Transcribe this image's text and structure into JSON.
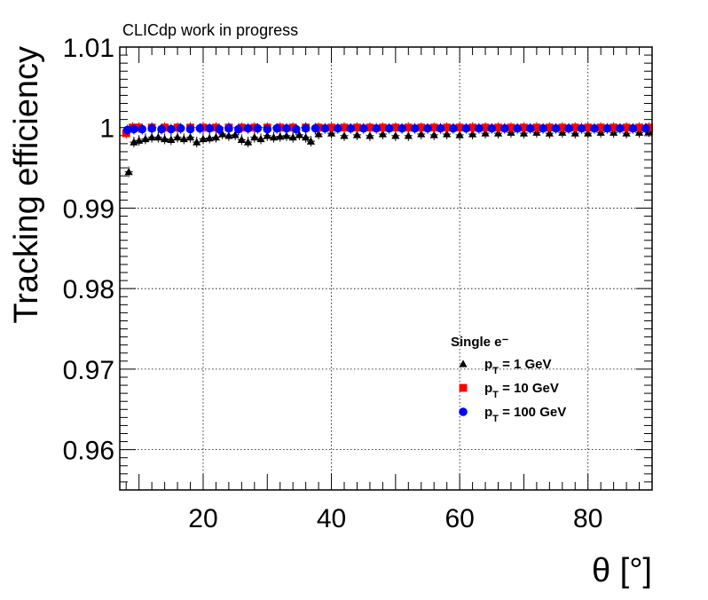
{
  "chart_data": {
    "type": "scatter",
    "annotation": "CLICdp work in progress",
    "xlabel": "θ [°]",
    "ylabel": "Tracking efficiency",
    "xlim": [
      7,
      90
    ],
    "ylim": [
      0.955,
      1.01
    ],
    "xticks": [
      20,
      40,
      60,
      80
    ],
    "yticks": [
      0.96,
      0.97,
      0.98,
      0.99,
      1,
      1.01
    ],
    "ytick_labels": [
      "0.96",
      "0.97",
      "0.98",
      "0.99",
      "1",
      "1.01"
    ],
    "grid": true,
    "legend_title": "Single e⁻",
    "legend_placement": "center-right",
    "series": [
      {
        "name": "p_T = 1 GeV",
        "label_main": "p",
        "label_sub": "T",
        "label_rest": " = 1 GeV",
        "marker": "triangle",
        "color": "#000000",
        "points": [
          [
            8.0,
            0.9995
          ],
          [
            8.4,
            0.9945
          ],
          [
            9.2,
            0.9982
          ],
          [
            10.0,
            0.9984
          ],
          [
            11.0,
            0.9986
          ],
          [
            12.0,
            0.9988
          ],
          [
            13.0,
            0.9988
          ],
          [
            14.0,
            0.9986
          ],
          [
            15.0,
            0.9985
          ],
          [
            16.0,
            0.9988
          ],
          [
            17.0,
            0.9986
          ],
          [
            18.0,
            0.9988
          ],
          [
            19.0,
            0.9982
          ],
          [
            20.0,
            0.9986
          ],
          [
            21.0,
            0.9987
          ],
          [
            22.0,
            0.9988
          ],
          [
            23.0,
            0.9992
          ],
          [
            24.0,
            0.999
          ],
          [
            25.0,
            0.9991
          ],
          [
            26.0,
            0.9985
          ],
          [
            27.0,
            0.9982
          ],
          [
            28.0,
            0.9988
          ],
          [
            29.0,
            0.9986
          ],
          [
            30.0,
            0.999
          ],
          [
            31.0,
            0.9988
          ],
          [
            32.0,
            0.9989
          ],
          [
            33.0,
            0.999
          ],
          [
            34.0,
            0.9988
          ],
          [
            35.0,
            0.9991
          ],
          [
            36.0,
            0.9988
          ],
          [
            36.8,
            0.9983
          ],
          [
            38.0,
            0.9992
          ],
          [
            40.0,
            0.9993
          ],
          [
            42.0,
            0.999
          ],
          [
            44.0,
            0.9991
          ],
          [
            46.0,
            0.999
          ],
          [
            48.0,
            0.9992
          ],
          [
            50.0,
            0.999
          ],
          [
            52.0,
            0.999
          ],
          [
            54.0,
            0.9992
          ],
          [
            56.0,
            0.9991
          ],
          [
            58.0,
            0.9992
          ],
          [
            60.0,
            0.9991
          ],
          [
            62.0,
            0.9992
          ],
          [
            64.0,
            0.9993
          ],
          [
            66.0,
            0.9993
          ],
          [
            68.0,
            0.9994
          ],
          [
            70.0,
            0.9993
          ],
          [
            72.0,
            0.9994
          ],
          [
            74.0,
            0.9993
          ],
          [
            76.0,
            0.9994
          ],
          [
            78.0,
            0.9993
          ],
          [
            80.0,
            0.9993
          ],
          [
            82.0,
            0.9994
          ],
          [
            84.0,
            0.9994
          ],
          [
            86.0,
            0.9993
          ],
          [
            88.0,
            0.9994
          ],
          [
            89.5,
            0.9995
          ]
        ]
      },
      {
        "name": "p_T = 10 GeV",
        "label_main": "p",
        "label_sub": "T",
        "label_rest": " = 10 GeV",
        "marker": "square",
        "color": "#ff0000",
        "points": [
          [
            8.0,
            0.9993
          ],
          [
            9.0,
            1.0
          ],
          [
            10.0,
            1.0
          ],
          [
            12.0,
            1.0
          ],
          [
            14.0,
            1.0
          ],
          [
            16.0,
            1.0
          ],
          [
            18.0,
            1.0
          ],
          [
            20.0,
            1.0
          ],
          [
            22.0,
            1.0
          ],
          [
            24.0,
            1.0
          ],
          [
            26.0,
            1.0
          ],
          [
            28.0,
            1.0
          ],
          [
            30.0,
            1.0
          ],
          [
            32.0,
            1.0
          ],
          [
            34.0,
            1.0
          ],
          [
            36.0,
            1.0
          ],
          [
            38.0,
            1.0
          ],
          [
            40.0,
            1.0
          ],
          [
            42.0,
            1.0
          ],
          [
            44.0,
            1.0
          ],
          [
            46.0,
            1.0
          ],
          [
            48.0,
            1.0
          ],
          [
            50.0,
            1.0
          ],
          [
            52.0,
            1.0
          ],
          [
            54.0,
            1.0
          ],
          [
            56.0,
            1.0
          ],
          [
            58.0,
            1.0
          ],
          [
            60.0,
            1.0
          ],
          [
            62.0,
            1.0
          ],
          [
            64.0,
            1.0
          ],
          [
            66.0,
            1.0
          ],
          [
            68.0,
            1.0
          ],
          [
            70.0,
            1.0
          ],
          [
            72.0,
            1.0
          ],
          [
            74.0,
            1.0
          ],
          [
            76.0,
            1.0
          ],
          [
            78.0,
            1.0
          ],
          [
            80.0,
            1.0
          ],
          [
            82.0,
            1.0
          ],
          [
            84.0,
            1.0
          ],
          [
            86.0,
            1.0
          ],
          [
            88.0,
            1.0
          ],
          [
            89.5,
            1.0
          ]
        ]
      },
      {
        "name": "p_T = 100 GeV",
        "label_main": "p",
        "label_sub": "T",
        "label_rest": " = 100 GeV",
        "marker": "circle",
        "color": "#0000ff",
        "points": [
          [
            8.2,
            0.9997
          ],
          [
            9.2,
            0.9998
          ],
          [
            10.5,
            0.9998
          ],
          [
            12.0,
            0.9999
          ],
          [
            13.5,
            0.9998
          ],
          [
            15.0,
            0.9998
          ],
          [
            16.5,
            0.9999
          ],
          [
            18.0,
            0.9998
          ],
          [
            19.5,
            0.9999
          ],
          [
            21.0,
            0.9999
          ],
          [
            22.5,
            0.9998
          ],
          [
            24.0,
            0.9999
          ],
          [
            25.5,
            0.9998
          ],
          [
            27.0,
            0.9999
          ],
          [
            28.5,
            0.9999
          ],
          [
            30.0,
            0.9998
          ],
          [
            31.5,
            0.9999
          ],
          [
            33.0,
            0.9999
          ],
          [
            34.5,
            0.9998
          ],
          [
            36.0,
            0.9999
          ],
          [
            37.5,
            0.9999
          ],
          [
            39.0,
            0.9999
          ],
          [
            41.0,
            0.9999
          ],
          [
            43.0,
            0.9999
          ],
          [
            45.0,
            0.9999
          ],
          [
            47.0,
            0.9999
          ],
          [
            49.0,
            0.9999
          ],
          [
            51.0,
            0.9999
          ],
          [
            53.0,
            0.9999
          ],
          [
            55.0,
            0.9999
          ],
          [
            57.0,
            0.9999
          ],
          [
            59.0,
            0.9999
          ],
          [
            61.0,
            0.9999
          ],
          [
            63.0,
            0.9999
          ],
          [
            65.0,
            0.9999
          ],
          [
            67.0,
            0.9999
          ],
          [
            69.0,
            0.9999
          ],
          [
            71.0,
            0.9999
          ],
          [
            73.0,
            0.9999
          ],
          [
            75.0,
            0.9999
          ],
          [
            77.0,
            0.9999
          ],
          [
            79.0,
            0.9999
          ],
          [
            81.0,
            0.9999
          ],
          [
            83.0,
            0.9999
          ],
          [
            85.0,
            0.9999
          ],
          [
            87.0,
            0.9999
          ],
          [
            89.0,
            0.9999
          ]
        ]
      }
    ]
  }
}
